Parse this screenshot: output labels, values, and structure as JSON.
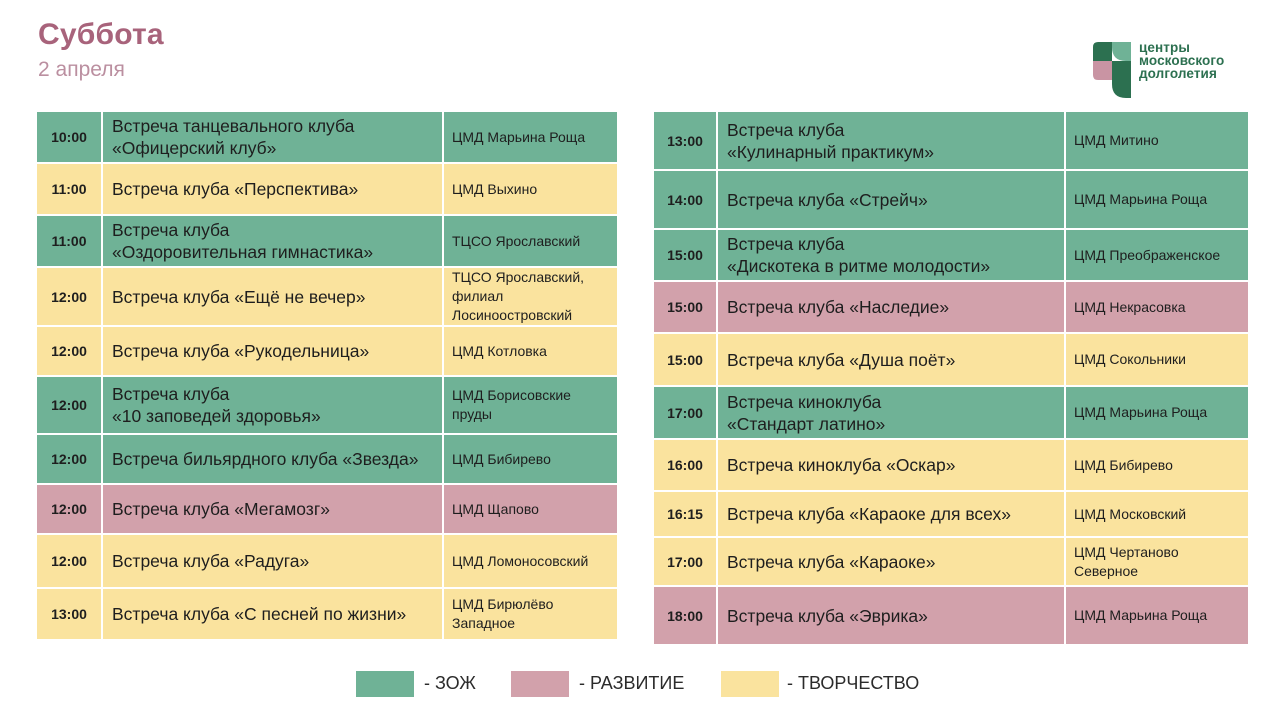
{
  "header": {
    "day": "Суббота",
    "date": "2 апреля"
  },
  "logo": {
    "line1": "центры",
    "line2": "московского",
    "line3": "долголетия"
  },
  "colors": {
    "zozh": "#6fb296",
    "razvitie": "#d2a1ab",
    "tvorchestvo": "#fae39e",
    "title": "#a8637b",
    "logo_green": "#2c7050"
  },
  "left_table": [
    {
      "time": "10:00",
      "event": [
        "Встреча танцевального клуба",
        "«Офицерский клуб»"
      ],
      "place": [
        "ЦМД Марьина Роща"
      ],
      "category": "zozh"
    },
    {
      "time": "11:00",
      "event": [
        "Встреча клуба «Перспектива»"
      ],
      "place": [
        "ЦМД Выхино"
      ],
      "category": "tvor"
    },
    {
      "time": "11:00",
      "event": [
        "Встреча клуба",
        "«Оздоровительная гимнастика»"
      ],
      "place": [
        "ТЦСО Ярославский"
      ],
      "category": "zozh"
    },
    {
      "time": "12:00",
      "event": [
        "Встреча клуба «Ещё не вечер»"
      ],
      "place": [
        "ТЦСО Ярославский,",
        "филиал",
        "Лосиноостровский"
      ],
      "category": "tvor"
    },
    {
      "time": "12:00",
      "event": [
        "Встреча клуба «Рукодельница»"
      ],
      "place": [
        "ЦМД Котловка"
      ],
      "category": "tvor"
    },
    {
      "time": "12:00",
      "event": [
        "Встреча клуба",
        "«10 заповедей здоровья»"
      ],
      "place": [
        "ЦМД Борисовские",
        "пруды"
      ],
      "category": "zozh"
    },
    {
      "time": "12:00",
      "event": [
        "Встреча бильярдного клуба «Звезда»"
      ],
      "place": [
        "ЦМД Бибирево"
      ],
      "category": "zozh"
    },
    {
      "time": "12:00",
      "event": [
        "Встреча клуба «Мегамозг»"
      ],
      "place": [
        "ЦМД Щапово"
      ],
      "category": "razv"
    },
    {
      "time": "12:00",
      "event": [
        "Встреча клуба «Радуга»"
      ],
      "place": [
        "ЦМД Ломоносовский"
      ],
      "category": "tvor"
    },
    {
      "time": "13:00",
      "event": [
        "Встреча клуба «С песней по жизни»"
      ],
      "place": [
        "ЦМД Бирюлёво",
        "Западное"
      ],
      "category": "tvor"
    }
  ],
  "right_table": [
    {
      "time": "13:00",
      "event": [
        "Встреча клуба",
        "«Кулинарный практикум»"
      ],
      "place": [
        "ЦМД Митино"
      ],
      "category": "zozh"
    },
    {
      "time": "14:00",
      "event": [
        "Встреча клуба «Стрейч»"
      ],
      "place": [
        "ЦМД Марьина Роща"
      ],
      "category": "zozh"
    },
    {
      "time": "15:00",
      "event": [
        "Встреча клуба",
        "«Дискотека в ритме молодости»"
      ],
      "place": [
        "ЦМД Преображенское"
      ],
      "category": "zozh"
    },
    {
      "time": "15:00",
      "event": [
        "Встреча клуба «Наследие»"
      ],
      "place": [
        "ЦМД Некрасовка"
      ],
      "category": "razv"
    },
    {
      "time": "15:00",
      "event": [
        "Встреча клуба «Душа поёт»"
      ],
      "place": [
        "ЦМД Сокольники"
      ],
      "category": "tvor"
    },
    {
      "time": "17:00",
      "event": [
        "Встреча киноклуба",
        "«Стандарт латино»"
      ],
      "place": [
        "ЦМД Марьина Роща"
      ],
      "category": "zozh"
    },
    {
      "time": "16:00",
      "event": [
        "Встреча киноклуба «Оскар»"
      ],
      "place": [
        "ЦМД Бибирево"
      ],
      "category": "tvor"
    },
    {
      "time": "16:15",
      "event": [
        "Встреча клуба «Караоке для всех»"
      ],
      "place": [
        "ЦМД Московский"
      ],
      "category": "tvor"
    },
    {
      "time": "17:00",
      "event": [
        "Встреча клуба «Караоке»"
      ],
      "place": [
        "ЦМД Чертаново",
        "Северное"
      ],
      "category": "tvor"
    },
    {
      "time": "18:00",
      "event": [
        "Встреча клуба «Эврика»"
      ],
      "place": [
        "ЦМД Марьина Роща"
      ],
      "category": "razv"
    }
  ],
  "legend": [
    {
      "label": "- ЗОЖ",
      "category": "zozh"
    },
    {
      "label": "- РАЗВИТИЕ",
      "category": "razv"
    },
    {
      "label": "- ТВОРЧЕСТВО",
      "category": "tvor"
    }
  ]
}
